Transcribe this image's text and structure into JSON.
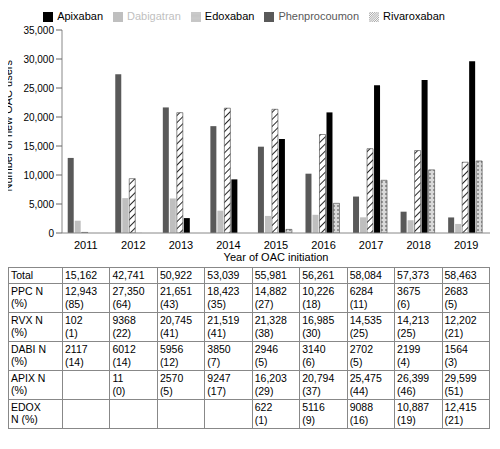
{
  "chart_data": {
    "type": "bar",
    "y_label": "Number of new OAC users",
    "x_label": "Year of OAC initiation",
    "categories": [
      "2011",
      "2012",
      "2013",
      "2014",
      "2015",
      "2016",
      "2017",
      "2018",
      "2019"
    ],
    "series": [
      {
        "name": "Phenprocoumon",
        "color": "#595959",
        "values": [
          12943,
          27350,
          21651,
          18423,
          14882,
          10226,
          6284,
          3675,
          2683
        ]
      },
      {
        "name": "Dabigatran",
        "color": "#bfbfbf",
        "values": [
          2117,
          6012,
          5956,
          3850,
          2946,
          3140,
          2702,
          2199,
          1564
        ]
      },
      {
        "name": "Rivaroxaban",
        "color": "#262626",
        "values": [
          102,
          9368,
          20745,
          21519,
          21328,
          16985,
          14535,
          14213,
          12202
        ]
      },
      {
        "name": "Apixaban",
        "color": "#000000",
        "values": [
          null,
          11,
          2570,
          9247,
          16203,
          20794,
          25475,
          26399,
          29599
        ]
      },
      {
        "name": "Edoxaban",
        "color": "#d9d9d9",
        "values": [
          null,
          null,
          null,
          null,
          622,
          5116,
          9088,
          10887,
          12415
        ]
      }
    ],
    "ylim": [
      0,
      35000
    ],
    "yticks": [
      0,
      {
        "value": 5000,
        "label": "5,000"
      },
      {
        "value": 10000,
        "label": "10,000"
      },
      {
        "value": 15000,
        "label": "15,000"
      },
      {
        "value": 20000,
        "label": "20,000"
      },
      {
        "value": 25000,
        "label": "25,000"
      },
      {
        "value": 30000,
        "label": "30,000"
      },
      {
        "value": 35000,
        "label": "35,000"
      }
    ],
    "grid": false,
    "legend": "top"
  },
  "table": {
    "rows": [
      {
        "label": "Total",
        "cells": [
          [
            "15,162"
          ],
          [
            "42,741"
          ],
          [
            "50,922"
          ],
          [
            "53,039"
          ],
          [
            "55,981"
          ],
          [
            "56,261"
          ],
          [
            "58,084"
          ],
          [
            "57,373"
          ],
          [
            "58,463"
          ]
        ]
      },
      {
        "label": "PPC N (%)",
        "cells": [
          [
            "12,943",
            "(85)"
          ],
          [
            "27,350",
            "(64)"
          ],
          [
            "21,651",
            "(43)"
          ],
          [
            "18,423",
            "(35)"
          ],
          [
            "14,882",
            "(27)"
          ],
          [
            "10,226",
            "(18)"
          ],
          [
            "6284",
            "(11)"
          ],
          [
            "3675",
            "(6)"
          ],
          [
            "2683",
            "(5)"
          ]
        ]
      },
      {
        "label": "RVX N (%)",
        "cells": [
          [
            "102",
            "(1)"
          ],
          [
            "9368",
            "(22)"
          ],
          [
            "20,745",
            "(41)"
          ],
          [
            "21,519",
            "(41)"
          ],
          [
            "21,328",
            "(38)"
          ],
          [
            "16,985",
            "(30)"
          ],
          [
            "14,535",
            "(25)"
          ],
          [
            "14,213",
            "(25)"
          ],
          [
            "12,202",
            "(21)"
          ]
        ]
      },
      {
        "label": "DABI N (%)",
        "cells": [
          [
            "2117",
            "(14)"
          ],
          [
            "6012",
            "(14)"
          ],
          [
            "5956",
            "(12)"
          ],
          [
            "3850",
            "(7)"
          ],
          [
            "2946",
            "(5)"
          ],
          [
            "3140",
            "(6)"
          ],
          [
            "2702",
            "(5)"
          ],
          [
            "2199",
            "(4)"
          ],
          [
            "1564",
            "(3)"
          ]
        ]
      },
      {
        "label": "APIX N (%)",
        "cells": [
          null,
          [
            "11",
            "(0)"
          ],
          [
            "2570",
            "(5)"
          ],
          [
            "9247",
            "(17)"
          ],
          [
            "16,203",
            "(29)"
          ],
          [
            "20,794",
            "(37)"
          ],
          [
            "25,475",
            "(44)"
          ],
          [
            "26,399",
            "(46)"
          ],
          [
            "29,599",
            "(51)"
          ]
        ]
      },
      {
        "label": "EDOX N (%)",
        "cells": [
          null,
          null,
          null,
          null,
          [
            "622",
            "(1)"
          ],
          [
            "5116",
            "(9)"
          ],
          [
            "9088",
            "(16)"
          ],
          [
            "10,887",
            "(19)"
          ],
          [
            "12,415",
            "(21)"
          ]
        ]
      }
    ]
  }
}
